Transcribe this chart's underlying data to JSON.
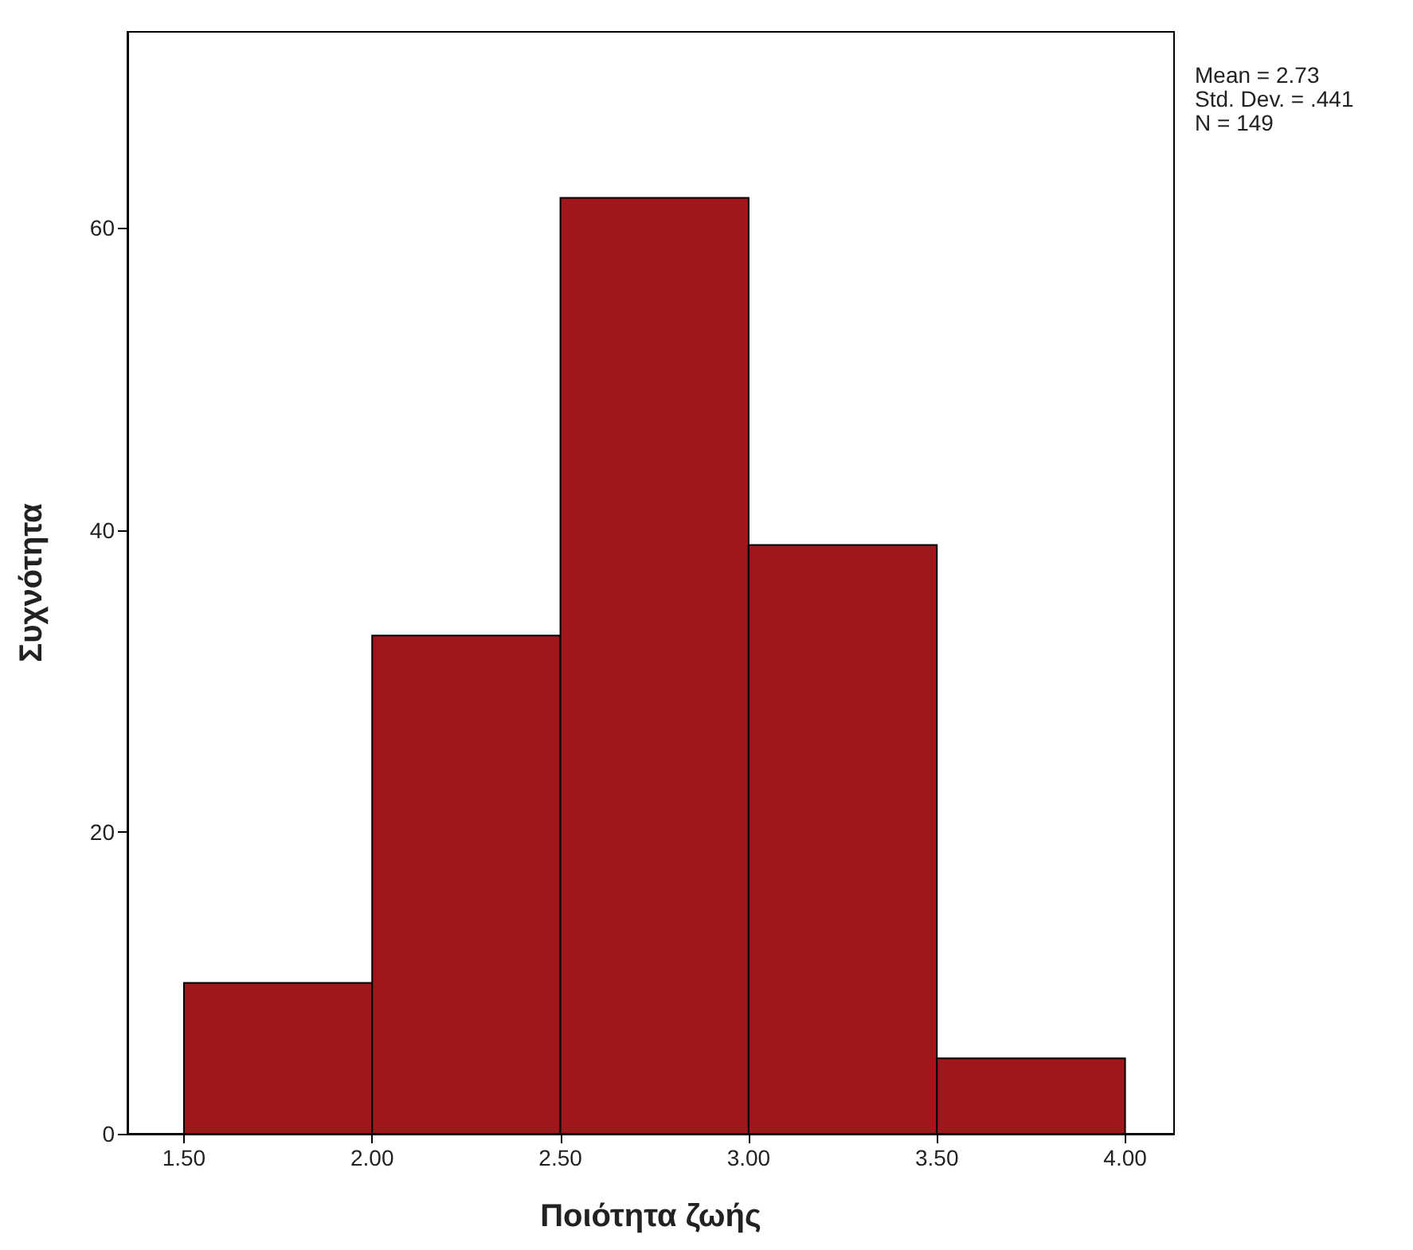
{
  "chart_data": {
    "type": "histogram",
    "xlabel": "Ποιότητα ζωής",
    "ylabel": "Συχνότητα",
    "bins": [
      1.5,
      2.0,
      2.5,
      3.0,
      3.5,
      4.0
    ],
    "values": [
      10,
      33,
      62,
      39,
      5
    ],
    "color": "#a0161b",
    "xlim": [
      1.35,
      4.13
    ],
    "xticks": [
      {
        "value": 1.5,
        "label": "1.50"
      },
      {
        "value": 2.0,
        "label": "2.00"
      },
      {
        "value": 2.5,
        "label": "2.50"
      },
      {
        "value": 3.0,
        "label": "3.00"
      },
      {
        "value": 3.5,
        "label": "3.50"
      },
      {
        "value": 4.0,
        "label": "4.00"
      }
    ],
    "ylim": [
      0,
      73
    ],
    "yticks": [
      0,
      20,
      40,
      60
    ],
    "grid": false,
    "annotations": [
      "Mean = 2.73",
      "Std. Dev. = .441",
      "N = 149"
    ]
  }
}
